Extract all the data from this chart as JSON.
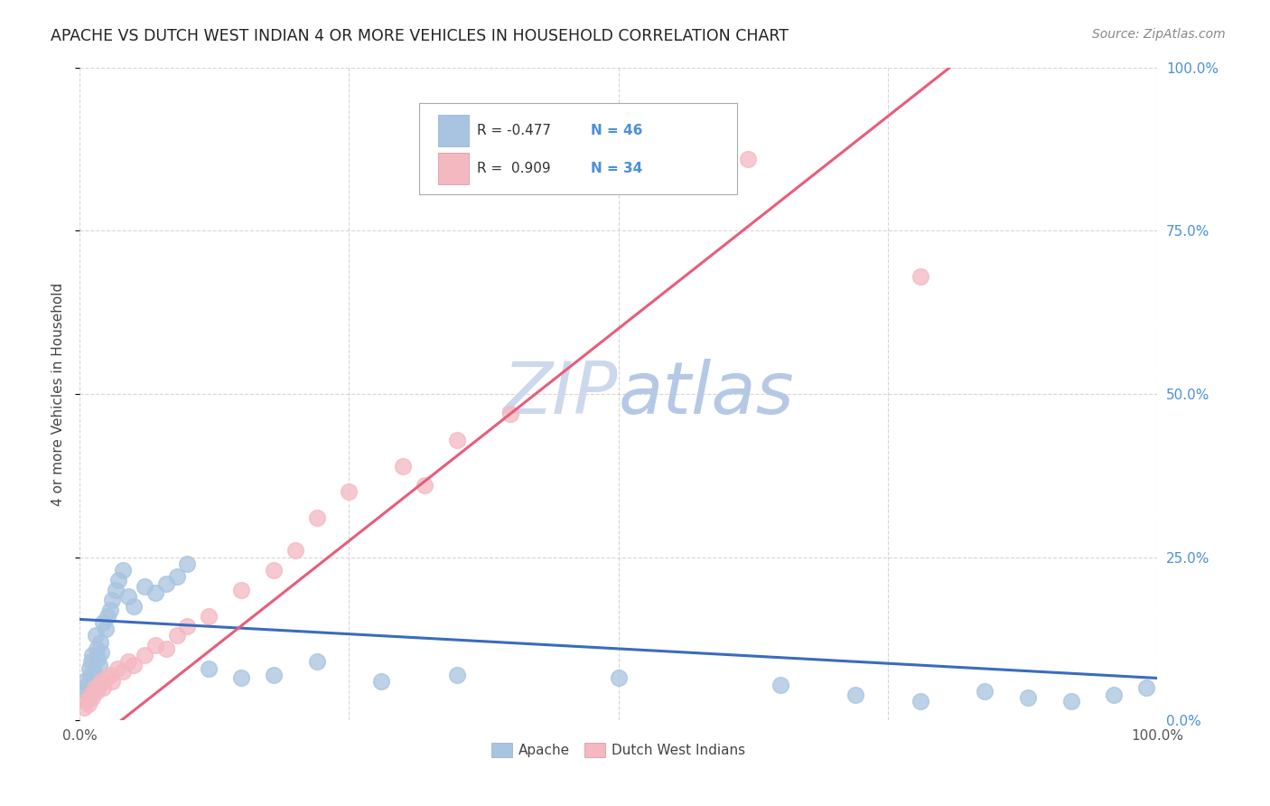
{
  "title": "APACHE VS DUTCH WEST INDIAN 4 OR MORE VEHICLES IN HOUSEHOLD CORRELATION CHART",
  "source": "Source: ZipAtlas.com",
  "ylabel": "4 or more Vehicles in Household",
  "xlim": [
    0.0,
    1.0
  ],
  "ylim": [
    0.0,
    1.0
  ],
  "ytick_positions": [
    0.0,
    0.25,
    0.5,
    0.75,
    1.0
  ],
  "xtick_positions": [
    0.0,
    0.25,
    0.5,
    0.75,
    1.0
  ],
  "apache_color": "#a8c4e0",
  "dutch_color": "#f4b8c1",
  "apache_line_color": "#3a6bbf",
  "dutch_line_color": "#e85c7a",
  "watermark_zip_color": "#cdd9ee",
  "watermark_atlas_color": "#b8cfe8",
  "background_color": "#ffffff",
  "grid_color": "#cccccc",
  "right_axis_color": "#4a90d9",
  "apache_x": [
    0.004,
    0.006,
    0.007,
    0.008,
    0.009,
    0.01,
    0.011,
    0.012,
    0.013,
    0.014,
    0.015,
    0.016,
    0.017,
    0.018,
    0.019,
    0.02,
    0.022,
    0.024,
    0.026,
    0.028,
    0.03,
    0.033,
    0.036,
    0.04,
    0.045,
    0.05,
    0.06,
    0.07,
    0.08,
    0.09,
    0.1,
    0.12,
    0.15,
    0.18,
    0.22,
    0.28,
    0.35,
    0.5,
    0.65,
    0.72,
    0.78,
    0.84,
    0.88,
    0.92,
    0.96,
    0.99
  ],
  "apache_y": [
    0.06,
    0.045,
    0.055,
    0.04,
    0.08,
    0.07,
    0.09,
    0.1,
    0.075,
    0.065,
    0.13,
    0.11,
    0.095,
    0.085,
    0.12,
    0.105,
    0.15,
    0.14,
    0.16,
    0.17,
    0.185,
    0.2,
    0.215,
    0.23,
    0.19,
    0.175,
    0.205,
    0.195,
    0.21,
    0.22,
    0.24,
    0.08,
    0.065,
    0.07,
    0.09,
    0.06,
    0.07,
    0.065,
    0.055,
    0.04,
    0.03,
    0.045,
    0.035,
    0.03,
    0.04,
    0.05
  ],
  "dutch_x": [
    0.004,
    0.006,
    0.008,
    0.01,
    0.012,
    0.014,
    0.016,
    0.018,
    0.02,
    0.022,
    0.025,
    0.028,
    0.03,
    0.035,
    0.04,
    0.045,
    0.05,
    0.06,
    0.07,
    0.08,
    0.09,
    0.1,
    0.12,
    0.15,
    0.18,
    0.2,
    0.22,
    0.25,
    0.3,
    0.32,
    0.35,
    0.4,
    0.62,
    0.78
  ],
  "dutch_y": [
    0.02,
    0.03,
    0.025,
    0.04,
    0.035,
    0.05,
    0.045,
    0.055,
    0.06,
    0.05,
    0.065,
    0.07,
    0.06,
    0.08,
    0.075,
    0.09,
    0.085,
    0.1,
    0.115,
    0.11,
    0.13,
    0.145,
    0.16,
    0.2,
    0.23,
    0.26,
    0.31,
    0.35,
    0.39,
    0.36,
    0.43,
    0.47,
    0.86,
    0.68
  ],
  "legend_R_apache": "R = -0.477",
  "legend_N_apache": "N = 46",
  "legend_R_dutch": "R =  0.909",
  "legend_N_dutch": "N = 34"
}
